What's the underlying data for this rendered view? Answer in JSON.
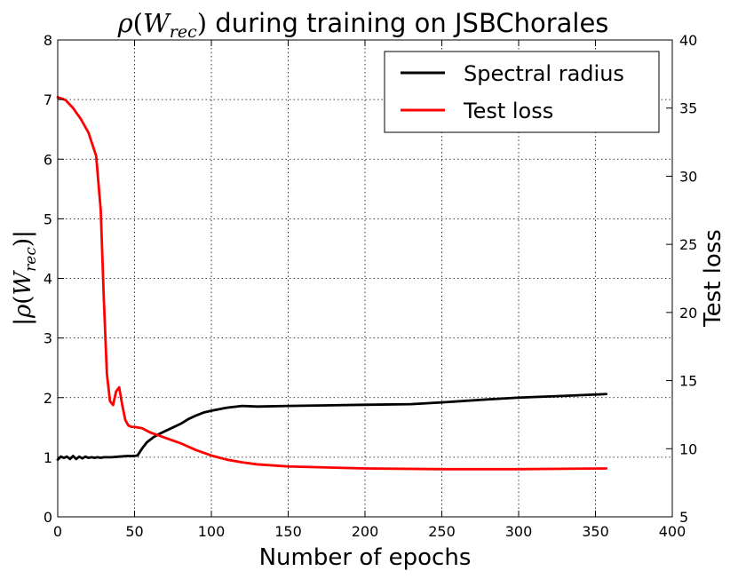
{
  "chart_data": {
    "type": "line",
    "title": {
      "math_symbol": "ρ",
      "math_open": "(",
      "math_var": "W",
      "math_sub": "rec",
      "math_close": ")",
      "rest": " during training on JSBChorales"
    },
    "xlabel": "Number of epochs",
    "ylabel_left": {
      "bar_open": "|",
      "math_symbol": "ρ",
      "open": "(",
      "var": "W",
      "sub": "rec",
      "close": ")",
      "bar_close": "|"
    },
    "ylabel_right": "Test loss",
    "xlim": [
      0,
      400
    ],
    "ylim_left": [
      0,
      8
    ],
    "ylim_right": [
      5,
      40
    ],
    "x_ticks": [
      "0",
      "50",
      "100",
      "150",
      "200",
      "250",
      "300",
      "350",
      "400"
    ],
    "y_ticks_left": [
      "0",
      "1",
      "2",
      "3",
      "4",
      "5",
      "6",
      "7",
      "8"
    ],
    "y_ticks_right": [
      "5",
      "10",
      "15",
      "20",
      "25",
      "30",
      "35",
      "40"
    ],
    "grid": true,
    "legend_position": "top-right",
    "series": [
      {
        "name": "Spectral radius",
        "color": "#000000",
        "axis": "left",
        "x": [
          0,
          2,
          4,
          6,
          8,
          10,
          12,
          14,
          16,
          18,
          20,
          22,
          24,
          26,
          28,
          30,
          35,
          40,
          45,
          50,
          52,
          55,
          58,
          62,
          66,
          70,
          75,
          80,
          85,
          90,
          95,
          100,
          110,
          120,
          130,
          150,
          200,
          230,
          250,
          280,
          300,
          330,
          357
        ],
        "y": [
          0.96,
          1.01,
          0.99,
          1.01,
          0.97,
          1.02,
          0.97,
          1.01,
          0.98,
          1.01,
          0.99,
          1.0,
          0.99,
          1.0,
          0.99,
          1.0,
          1.0,
          1.01,
          1.02,
          1.02,
          1.03,
          1.15,
          1.25,
          1.33,
          1.39,
          1.44,
          1.5,
          1.56,
          1.64,
          1.7,
          1.75,
          1.78,
          1.83,
          1.86,
          1.85,
          1.86,
          1.88,
          1.89,
          1.92,
          1.97,
          2.0,
          2.03,
          2.06
        ]
      },
      {
        "name": "Test loss",
        "color": "#ff0000",
        "axis": "right",
        "x": [
          0,
          5,
          10,
          15,
          20,
          25,
          28,
          30,
          32,
          34,
          36,
          38,
          40,
          42,
          44,
          46,
          48,
          50,
          55,
          60,
          65,
          70,
          80,
          90,
          100,
          110,
          120,
          130,
          150,
          200,
          250,
          300,
          357
        ],
        "y": [
          35.8,
          35.6,
          35.0,
          34.2,
          33.2,
          31.5,
          27.5,
          21.0,
          15.5,
          13.5,
          13.2,
          14.2,
          14.5,
          13.2,
          12.1,
          11.7,
          11.6,
          11.6,
          11.5,
          11.2,
          11.0,
          10.8,
          10.4,
          9.9,
          9.5,
          9.2,
          9.0,
          8.85,
          8.7,
          8.55,
          8.5,
          8.5,
          8.55
        ]
      }
    ]
  }
}
